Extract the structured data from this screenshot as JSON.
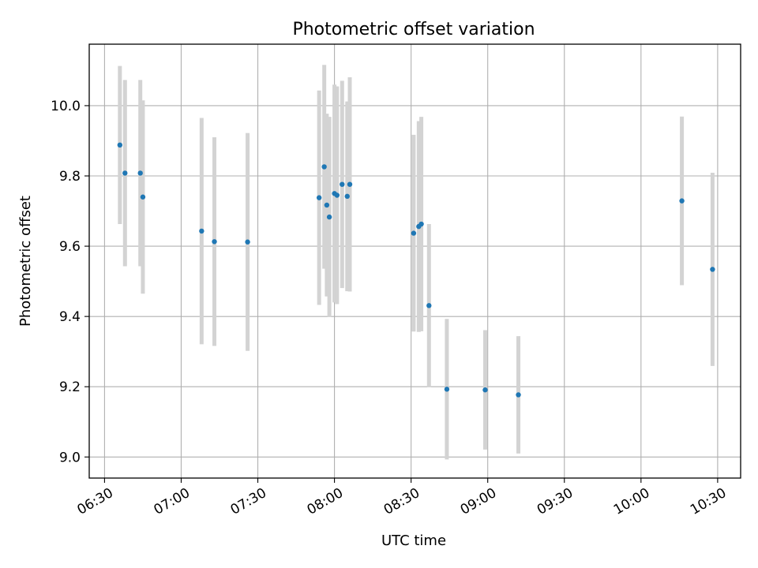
{
  "chart_data": {
    "type": "scatter",
    "title": "Photometric offset variation",
    "xlabel": "UTC time",
    "ylabel": "Photometric offset",
    "x_tick_labels": [
      "06:30",
      "07:00",
      "07:30",
      "08:00",
      "08:30",
      "09:00",
      "09:30",
      "10:00",
      "10:30"
    ],
    "y_tick_labels": [
      "9.0",
      "9.2",
      "9.4",
      "9.6",
      "9.8",
      "10.0"
    ],
    "xlim": [
      "06:24",
      "10:39"
    ],
    "ylim": [
      8.94,
      10.175
    ],
    "grid": true,
    "point_color": "#1f77b4",
    "errorbar_color": "#d3d3d3",
    "points": [
      {
        "x": "06:36",
        "y": 9.888,
        "err": 0.225
      },
      {
        "x": "06:38",
        "y": 9.808,
        "err": 0.265
      },
      {
        "x": "06:44",
        "y": 9.808,
        "err": 0.265
      },
      {
        "x": "06:45",
        "y": 9.74,
        "err": 0.275
      },
      {
        "x": "07:08",
        "y": 9.643,
        "err": 0.322
      },
      {
        "x": "07:13",
        "y": 9.613,
        "err": 0.297
      },
      {
        "x": "07:26",
        "y": 9.612,
        "err": 0.31
      },
      {
        "x": "07:54",
        "y": 9.738,
        "err": 0.305
      },
      {
        "x": "07:56",
        "y": 9.826,
        "err": 0.29
      },
      {
        "x": "07:57",
        "y": 9.717,
        "err": 0.26
      },
      {
        "x": "07:58",
        "y": 9.683,
        "err": 0.285
      },
      {
        "x": "08:00",
        "y": 9.75,
        "err": 0.31
      },
      {
        "x": "08:01",
        "y": 9.745,
        "err": 0.31
      },
      {
        "x": "08:03",
        "y": 9.776,
        "err": 0.295
      },
      {
        "x": "08:05",
        "y": 9.742,
        "err": 0.27
      },
      {
        "x": "08:06",
        "y": 9.776,
        "err": 0.305
      },
      {
        "x": "08:31",
        "y": 9.637,
        "err": 0.28
      },
      {
        "x": "08:33",
        "y": 9.656,
        "err": 0.3
      },
      {
        "x": "08:34",
        "y": 9.663,
        "err": 0.305
      },
      {
        "x": "08:37",
        "y": 9.431,
        "err": 0.232
      },
      {
        "x": "08:44",
        "y": 9.193,
        "err": 0.2
      },
      {
        "x": "08:59",
        "y": 9.191,
        "err": 0.17
      },
      {
        "x": "09:12",
        "y": 9.177,
        "err": 0.167
      },
      {
        "x": "10:16",
        "y": 9.729,
        "err": 0.24
      },
      {
        "x": "10:28",
        "y": 9.534,
        "err": 0.275
      }
    ]
  }
}
